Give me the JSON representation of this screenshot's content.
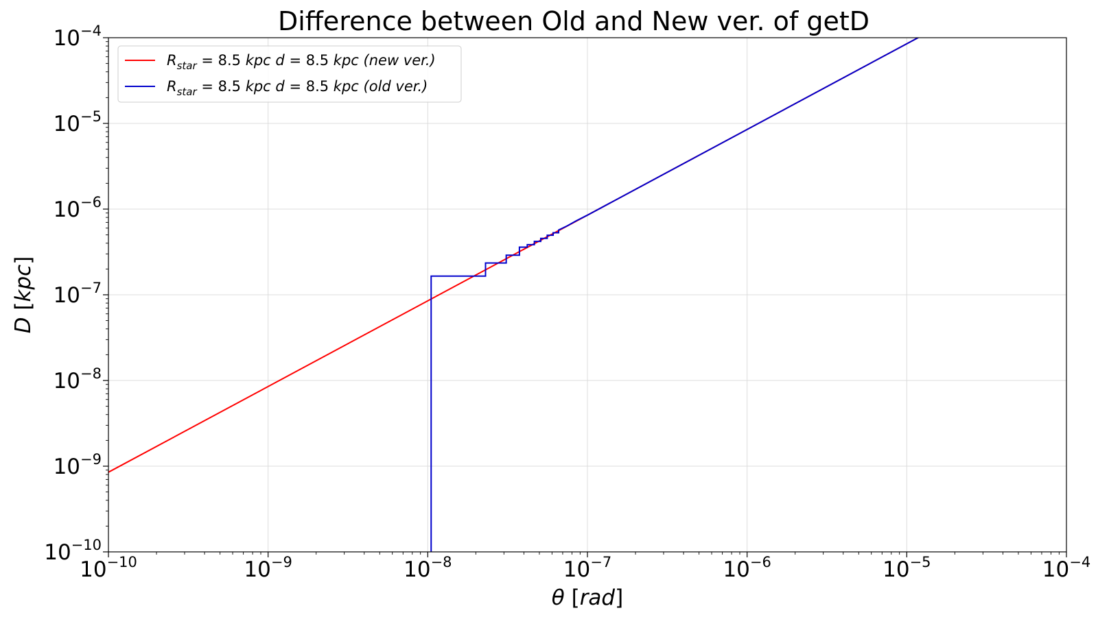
{
  "chart_data": {
    "type": "line",
    "title": "Difference between Old and New ver. of getD",
    "xlabel": {
      "symbol": "θ",
      "unit": "rad"
    },
    "ylabel": {
      "symbol": "D",
      "unit": "kpc"
    },
    "xscale": "log",
    "yscale": "log",
    "xlim": [
      1e-10,
      0.0001
    ],
    "ylim": [
      1e-10,
      0.0001
    ],
    "grid": true,
    "legend_position": "top-left",
    "x_ticks": [
      {
        "base": "10",
        "exp": "−10",
        "value": 1e-10
      },
      {
        "base": "10",
        "exp": "−9",
        "value": 1e-09
      },
      {
        "base": "10",
        "exp": "−8",
        "value": 1e-08
      },
      {
        "base": "10",
        "exp": "−7",
        "value": 1e-07
      },
      {
        "base": "10",
        "exp": "−6",
        "value": 1e-06
      },
      {
        "base": "10",
        "exp": "−5",
        "value": 1e-05
      },
      {
        "base": "10",
        "exp": "−4",
        "value": 0.0001
      }
    ],
    "y_ticks": [
      {
        "base": "10",
        "exp": "−10",
        "value": 1e-10
      },
      {
        "base": "10",
        "exp": "−9",
        "value": 1e-09
      },
      {
        "base": "10",
        "exp": "−8",
        "value": 1e-08
      },
      {
        "base": "10",
        "exp": "−7",
        "value": 1e-07
      },
      {
        "base": "10",
        "exp": "−6",
        "value": 1e-06
      },
      {
        "base": "10",
        "exp": "−5",
        "value": 1e-05
      },
      {
        "base": "10",
        "exp": "−4",
        "value": 0.0001
      }
    ],
    "series": [
      {
        "name": "R_star = 8.5 kpc  d = 8.5 kpc (new ver.)",
        "legend": {
          "R": "R",
          "sub": "star",
          "rest1": " = 8.5 ",
          "kpc1": "kpc",
          "d": "d",
          "rest2": " = 8.5 ",
          "kpc2": "kpc",
          "note": "(new ver.)"
        },
        "color": "#ff0000",
        "x": [
          1e-10,
          1.2e-05
        ],
        "y": [
          8.5e-10,
          0.000102
        ]
      },
      {
        "name": "R_star = 8.5 kpc  d = 8.5 kpc (old ver.)",
        "legend": {
          "R": "R",
          "sub": "star",
          "rest1": " = 8.5 ",
          "kpc1": "kpc",
          "d": "d",
          "rest2": " = 8.5 ",
          "kpc2": "kpc",
          "note": "(old ver.)"
        },
        "color": "#0000cc",
        "x": [
          1.05e-08,
          1.05e-08,
          2.3e-08,
          2.3e-08,
          3.1e-08,
          3.1e-08,
          3.75e-08,
          3.75e-08,
          4.2e-08,
          4.2e-08,
          4.65e-08,
          4.65e-08,
          5.1e-08,
          5.1e-08,
          5.6e-08,
          5.6e-08,
          6.1e-08,
          6.1e-08,
          6.6e-08,
          6.6e-08,
          7.5e-08,
          8.5e-08,
          1e-07,
          1e-06,
          1e-05,
          1.2e-05
        ],
        "y": [
          1e-10,
          1.65e-07,
          1.65e-07,
          2.35e-07,
          2.35e-07,
          2.9e-07,
          2.9e-07,
          3.6e-07,
          3.6e-07,
          3.85e-07,
          3.85e-07,
          4.2e-07,
          4.2e-07,
          4.55e-07,
          4.55e-07,
          4.95e-07,
          4.95e-07,
          5.3e-07,
          5.3e-07,
          5.7e-07,
          6.4e-07,
          7.3e-07,
          8.5e-07,
          8.5e-06,
          8.5e-05,
          0.000102
        ]
      }
    ]
  }
}
